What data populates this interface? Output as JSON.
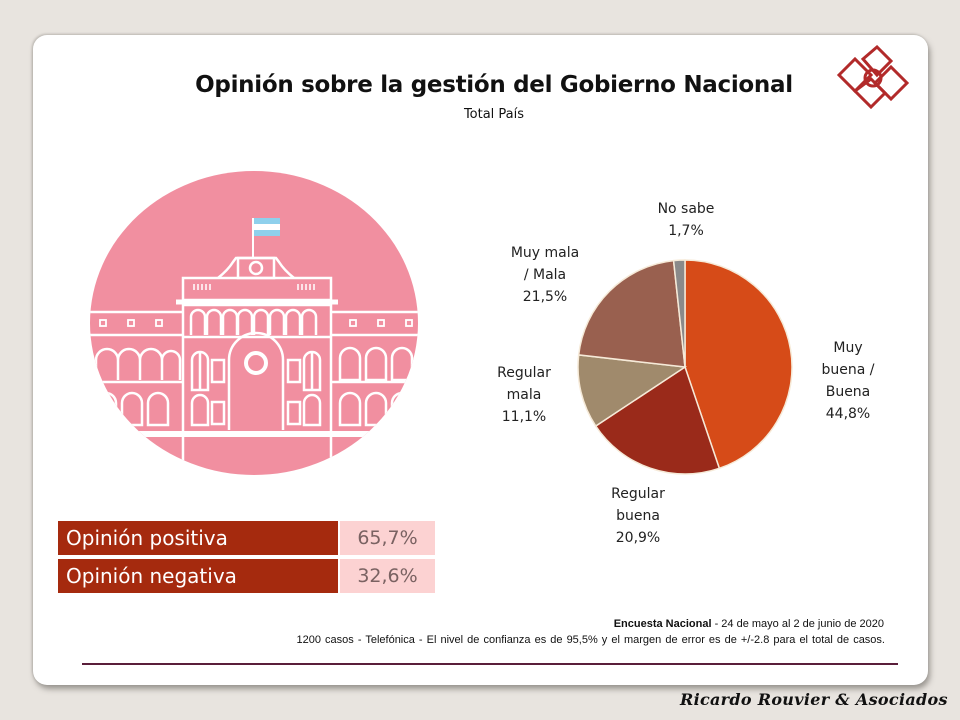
{
  "header": {
    "title": "Opinión sobre la gestión del Gobierno Nacional",
    "subtitle": "Total País"
  },
  "logo": {
    "icon": "interlocked-diamonds-logo-icon",
    "color": "#b22a2a"
  },
  "illustration": {
    "icon": "casa-rosada-building-icon",
    "bg_color": "#f18fa0",
    "flag": "argentina-flag-icon"
  },
  "chart_data": {
    "type": "pie",
    "title": "Opinión sobre la gestión del Gobierno Nacional",
    "subtitle": "Total País",
    "start": "top, clockwise",
    "slices": [
      {
        "label": "Muy buena / Buena",
        "label_lines": [
          "Muy",
          "buena /",
          "Buena"
        ],
        "value": 44.8,
        "display": "44,8%",
        "color": "#d64b18"
      },
      {
        "label": "Regular buena",
        "label_lines": [
          "Regular",
          "buena"
        ],
        "value": 20.9,
        "display": "20,9%",
        "color": "#9a2a1a"
      },
      {
        "label": "Regular mala",
        "label_lines": [
          "Regular",
          "mala"
        ],
        "value": 11.1,
        "display": "11,1%",
        "color": "#a08a6c"
      },
      {
        "label": "Muy mala / Mala",
        "label_lines": [
          "Muy mala",
          "/ Mala"
        ],
        "value": 21.5,
        "display": "21,5%",
        "color": "#99604f"
      },
      {
        "label": "No sabe",
        "label_lines": [
          "No sabe"
        ],
        "value": 1.7,
        "display": "1,7%",
        "color": "#8a8a8a"
      }
    ]
  },
  "summary": {
    "rows": [
      {
        "label": "Opinión positiva",
        "value": "65,7%"
      },
      {
        "label": "Opinión negativa",
        "value": "32,6%"
      }
    ]
  },
  "notes": {
    "survey_name": "Encuesta Nacional",
    "survey_dates": " - 24 de mayo al 2 de junio de 2020",
    "methodology": "1200 casos - Telefónica   - El nivel de confianza  es de 95,5% y el margen de error es de +/-2.8 para el total  de casos."
  },
  "footer": {
    "brand": "Ricardo Rouvier & Asociados"
  }
}
